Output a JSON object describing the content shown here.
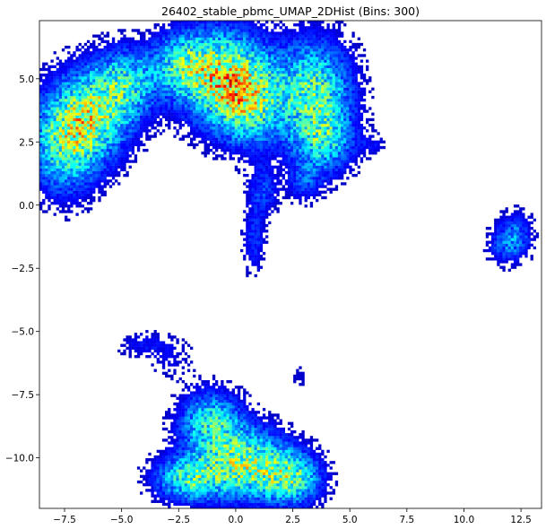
{
  "chart_data": {
    "type": "heatmap",
    "title": "26402_stable_pbmc_UMAP_2DHist (Bins: 300)",
    "xlabel": "",
    "ylabel": "",
    "xlim": [
      -8.6,
      13.4
    ],
    "ylim": [
      -12.0,
      7.3
    ],
    "x_ticks": [
      -7.5,
      -5.0,
      -2.5,
      0.0,
      2.5,
      5.0,
      7.5,
      10.0,
      12.5
    ],
    "x_tick_labels": [
      "−7.5",
      "−5.0",
      "−2.5",
      "0.0",
      "2.5",
      "5.0",
      "7.5",
      "10.0",
      "12.5"
    ],
    "y_ticks": [
      5.0,
      2.5,
      0.0,
      -2.5,
      -5.0,
      -7.5,
      -10.0
    ],
    "y_tick_labels": [
      "5.0",
      "2.5",
      "0.0",
      "−2.5",
      "−5.0",
      "−7.5",
      "−10.0"
    ],
    "bins": 300,
    "colormap": "jet",
    "grid": false,
    "legend": "none",
    "clusters": [
      {
        "x": -7.5,
        "y": 2.5,
        "sx": 1.0,
        "sy": 1.3,
        "w": 1.0
      },
      {
        "x": -6.2,
        "y": 3.6,
        "sx": 1.1,
        "sy": 1.2,
        "w": 1.0
      },
      {
        "x": -4.8,
        "y": 4.8,
        "sx": 0.9,
        "sy": 0.9,
        "w": 0.8
      },
      {
        "x": -2.4,
        "y": 5.6,
        "sx": 0.9,
        "sy": 0.8,
        "w": 0.7
      },
      {
        "x": -0.6,
        "y": 5.1,
        "sx": 1.3,
        "sy": 1.2,
        "w": 1.3
      },
      {
        "x": 0.6,
        "y": 4.0,
        "sx": 1.0,
        "sy": 1.1,
        "w": 0.9
      },
      {
        "x": 3.4,
        "y": 4.6,
        "sx": 1.1,
        "sy": 1.3,
        "w": 1.0
      },
      {
        "x": 3.8,
        "y": 2.6,
        "sx": 0.9,
        "sy": 0.9,
        "w": 0.8
      },
      {
        "x": 6.0,
        "y": 2.4,
        "sx": 0.35,
        "sy": 0.25,
        "w": 0.2
      },
      {
        "x": 1.2,
        "y": 0.6,
        "sx": 0.45,
        "sy": 0.7,
        "w": 0.35
      },
      {
        "x": 3.0,
        "y": 0.9,
        "sx": 0.5,
        "sy": 0.5,
        "w": 0.35
      },
      {
        "x": 0.8,
        "y": -1.4,
        "sx": 0.35,
        "sy": 0.9,
        "w": 0.3
      },
      {
        "x": 12.3,
        "y": -1.2,
        "sx": 0.5,
        "sy": 0.6,
        "w": 0.45
      },
      {
        "x": 11.7,
        "y": -1.6,
        "sx": 0.5,
        "sy": 0.5,
        "w": 0.3
      },
      {
        "x": -4.0,
        "y": -5.5,
        "sx": 0.9,
        "sy": 0.35,
        "w": 0.2
      },
      {
        "x": -2.8,
        "y": -6.1,
        "sx": 0.7,
        "sy": 0.5,
        "w": 0.15
      },
      {
        "x": 2.8,
        "y": -6.8,
        "sx": 0.25,
        "sy": 0.35,
        "w": 0.12
      },
      {
        "x": -1.1,
        "y": -8.6,
        "sx": 0.9,
        "sy": 0.8,
        "w": 0.9
      },
      {
        "x": -2.0,
        "y": -10.8,
        "sx": 1.0,
        "sy": 0.6,
        "w": 1.0
      },
      {
        "x": 0.4,
        "y": -10.2,
        "sx": 1.2,
        "sy": 0.9,
        "w": 1.2
      },
      {
        "x": 2.4,
        "y": -10.8,
        "sx": 0.9,
        "sy": 0.7,
        "w": 1.0
      }
    ]
  }
}
